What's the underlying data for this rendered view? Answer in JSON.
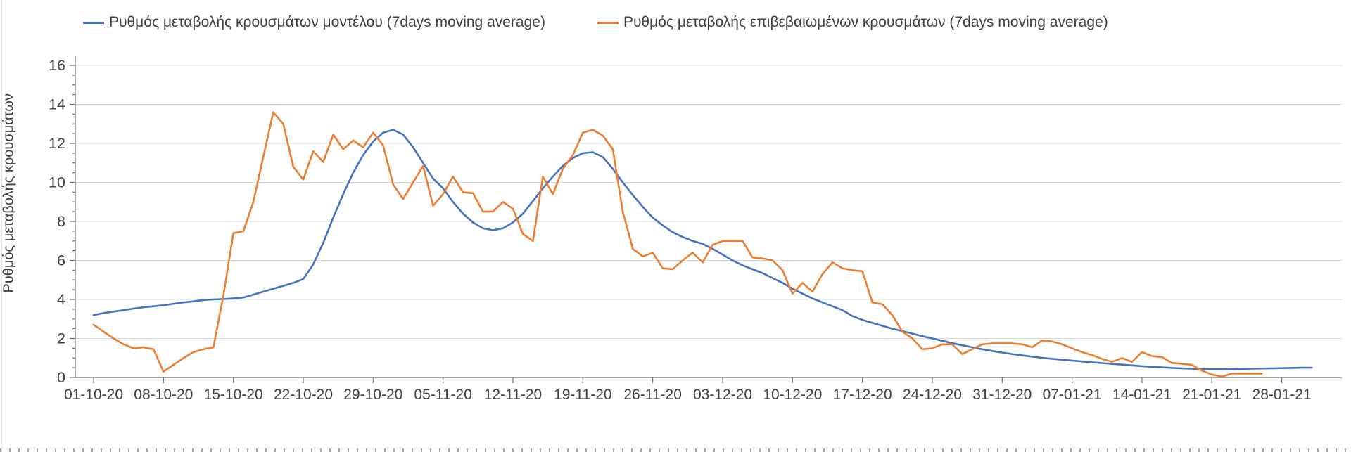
{
  "legend": {
    "items": [
      {
        "label": "Ρυθμός μεταβολής κρουσμάτων μοντέλου (7days moving average)",
        "color": "#4472C4"
      },
      {
        "label": "Ρυθμός μεταβολής επιβεβαιωμένων κρουσμάτων (7days moving average)",
        "color": "#ED7D31"
      }
    ]
  },
  "colors": {
    "model_line": "#4472C4",
    "confirmed_line": "#ED7D31",
    "grid": "#d9d9d9",
    "axis": "#6e6e6e",
    "text": "#404040"
  },
  "chart_data": {
    "type": "line",
    "title": "",
    "xlabel": "",
    "ylabel": "Ρυθμός μεταβολής κρουσμάτων",
    "ylim": [
      0,
      16
    ],
    "y_ticks": [
      0,
      2,
      4,
      6,
      8,
      10,
      12,
      14,
      16
    ],
    "y_minor_tick_step": 0.5,
    "grid": "horizontal-major",
    "legend_position": "top",
    "x_frequency": "daily",
    "x_start": "01-10-20",
    "x_end": "31-01-21",
    "x_tick_every_days": 7,
    "x_tick_labels": [
      "01-10-20",
      "08-10-20",
      "15-10-20",
      "22-10-20",
      "29-10-20",
      "05-11-20",
      "12-11-20",
      "19-11-20",
      "26-11-20",
      "03-12-20",
      "10-12-20",
      "17-12-20",
      "24-12-20",
      "31-12-20",
      "07-01-21",
      "14-01-21",
      "21-01-21",
      "28-01-21"
    ],
    "series": [
      {
        "name": "Ρυθμός μεταβολής κρουσμάτων μοντέλου (7days moving average)",
        "color": "#4472C4",
        "values": [
          3.2,
          3.3,
          3.38,
          3.45,
          3.53,
          3.6,
          3.65,
          3.7,
          3.78,
          3.85,
          3.9,
          3.97,
          4.0,
          4.02,
          4.05,
          4.1,
          4.25,
          4.4,
          4.55,
          4.7,
          4.85,
          5.05,
          5.8,
          6.9,
          8.2,
          9.4,
          10.5,
          11.4,
          12.1,
          12.55,
          12.7,
          12.45,
          11.8,
          11.0,
          10.2,
          9.7,
          9.0,
          8.4,
          7.95,
          7.65,
          7.55,
          7.65,
          7.95,
          8.4,
          9.05,
          9.7,
          10.3,
          10.85,
          11.25,
          11.5,
          11.55,
          11.3,
          10.7,
          10.0,
          9.35,
          8.75,
          8.2,
          7.8,
          7.45,
          7.2,
          7.0,
          6.85,
          6.6,
          6.3,
          6.0,
          5.75,
          5.55,
          5.35,
          5.1,
          4.85,
          4.55,
          4.3,
          4.05,
          3.85,
          3.65,
          3.45,
          3.15,
          2.95,
          2.8,
          2.65,
          2.5,
          2.38,
          2.25,
          2.12,
          2.0,
          1.88,
          1.76,
          1.65,
          1.55,
          1.45,
          1.36,
          1.28,
          1.2,
          1.13,
          1.07,
          1.01,
          0.96,
          0.91,
          0.87,
          0.82,
          0.78,
          0.74,
          0.7,
          0.66,
          0.62,
          0.58,
          0.55,
          0.52,
          0.49,
          0.47,
          0.45,
          0.43,
          0.42,
          0.42,
          0.43,
          0.44,
          0.45,
          0.46,
          0.47,
          0.48,
          0.49,
          0.5,
          0.5
        ]
      },
      {
        "name": "Ρυθμός μεταβολής επιβεβαιωμένων κρουσμάτων (7days moving average)",
        "color": "#ED7D31",
        "values": [
          2.7,
          2.35,
          2.0,
          1.7,
          1.5,
          1.55,
          1.45,
          0.3,
          0.65,
          1.0,
          1.3,
          1.45,
          1.55,
          4.2,
          7.4,
          7.5,
          9.0,
          11.3,
          13.6,
          13.0,
          10.8,
          10.15,
          11.6,
          11.05,
          12.45,
          11.7,
          12.15,
          11.8,
          12.55,
          11.9,
          9.9,
          9.15,
          10.0,
          10.85,
          8.8,
          9.4,
          10.3,
          9.5,
          9.45,
          8.5,
          8.5,
          9.0,
          8.65,
          7.35,
          7.0,
          10.3,
          9.4,
          10.7,
          11.4,
          12.55,
          12.7,
          12.4,
          11.7,
          8.5,
          6.6,
          6.2,
          6.4,
          5.6,
          5.55,
          6.0,
          6.4,
          5.9,
          6.8,
          7.0,
          7.0,
          7.0,
          6.15,
          6.1,
          6.0,
          5.5,
          4.3,
          4.85,
          4.4,
          5.3,
          5.9,
          5.6,
          5.5,
          5.45,
          3.85,
          3.75,
          3.2,
          2.35,
          2.0,
          1.45,
          1.5,
          1.7,
          1.7,
          1.2,
          1.45,
          1.7,
          1.75,
          1.75,
          1.75,
          1.7,
          1.55,
          1.9,
          1.85,
          1.7,
          1.5,
          1.3,
          1.15,
          0.95,
          0.8,
          1.0,
          0.8,
          1.3,
          1.1,
          1.05,
          0.75,
          0.7,
          0.65,
          0.35,
          0.15,
          0.05,
          0.2,
          0.2,
          0.2,
          0.2,
          null,
          null,
          null,
          null,
          null
        ]
      }
    ]
  }
}
